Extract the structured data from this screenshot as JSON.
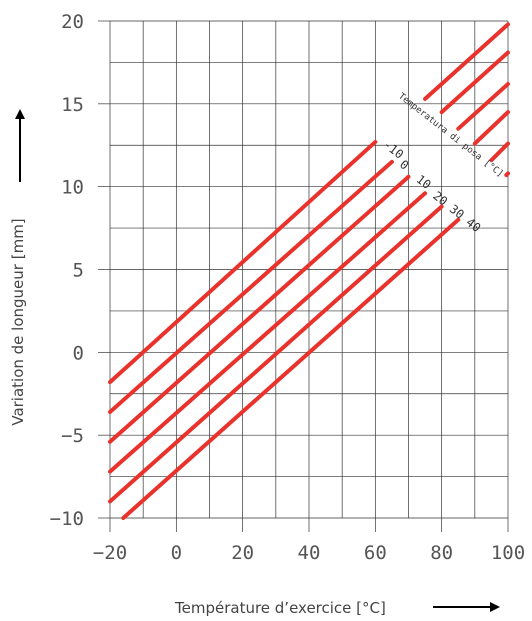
{
  "chart_data": {
    "type": "line",
    "xlabel": "Température d’exercice [°C]",
    "ylabel": "Variation de longueur [mm]",
    "xlim": [
      -20,
      100
    ],
    "ylim": [
      -10,
      20
    ],
    "x_ticks": [
      -20,
      0,
      20,
      40,
      60,
      80,
      100
    ],
    "y_ticks": [
      -10,
      -5,
      0,
      5,
      10,
      15,
      20
    ],
    "x_grid_step": 10,
    "y_grid_step": 2.5,
    "grid": true,
    "annotation": "Temperatura di posa [°C]",
    "line_color": "#e8322b",
    "series": [
      {
        "name": "-10",
        "points": [
          [
            -20,
            -1.8
          ],
          [
            60,
            12.7
          ]
        ]
      },
      {
        "name": "0",
        "points": [
          [
            -20,
            -3.6
          ],
          [
            65,
            11.5
          ]
        ]
      },
      {
        "name": "10",
        "points": [
          [
            -20,
            -5.4
          ],
          [
            70,
            10.6
          ]
        ]
      },
      {
        "name": "20",
        "points": [
          [
            -20,
            -7.2
          ],
          [
            75,
            9.6
          ]
        ]
      },
      {
        "name": "30",
        "points": [
          [
            -20,
            -9.0
          ],
          [
            80,
            8.8
          ]
        ]
      },
      {
        "name": "40",
        "points": [
          [
            -16,
            -10.0
          ],
          [
            85,
            8.0
          ]
        ]
      },
      {
        "name": "",
        "points": [
          [
            75,
            15.3
          ],
          [
            100,
            19.8
          ]
        ]
      },
      {
        "name": "",
        "points": [
          [
            80,
            14.5
          ],
          [
            100,
            18.1
          ]
        ]
      },
      {
        "name": "",
        "points": [
          [
            85,
            13.5
          ],
          [
            100,
            16.2
          ]
        ]
      },
      {
        "name": "",
        "points": [
          [
            90,
            12.6
          ],
          [
            100,
            14.5
          ]
        ]
      },
      {
        "name": "",
        "points": [
          [
            95,
            11.6
          ],
          [
            100,
            12.6
          ]
        ]
      },
      {
        "name": "",
        "points": [
          [
            99.5,
            10.7
          ],
          [
            100,
            10.8
          ]
        ]
      }
    ]
  }
}
